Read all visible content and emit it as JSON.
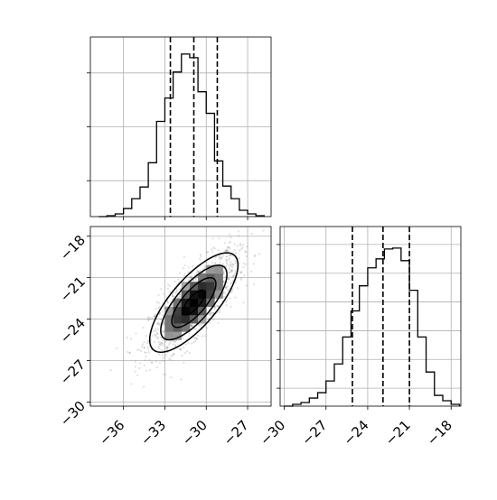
{
  "chart_data": [
    {
      "panel": "histogram-x",
      "type": "histogram",
      "xlim": [
        -38.4,
        -25.3
      ],
      "ylim": [
        0,
        1.0
      ],
      "bin_edges": [
        -37.8,
        -37.2,
        -36.6,
        -36.0,
        -35.4,
        -34.8,
        -34.2,
        -33.6,
        -33.0,
        -32.4,
        -31.8,
        -31.2,
        -30.6,
        -30.0,
        -29.4,
        -28.8,
        -28.2,
        -27.6,
        -27.0,
        -26.4,
        -25.8
      ],
      "counts": [
        0.0,
        0.005,
        0.015,
        0.045,
        0.1,
        0.165,
        0.3,
        0.53,
        0.66,
        0.805,
        0.905,
        0.885,
        0.695,
        0.575,
        0.31,
        0.17,
        0.1,
        0.035,
        0.015,
        0.005
      ],
      "quantiles": [
        -32.6,
        -30.9,
        -29.2
      ],
      "grid": true,
      "y_tick_values": [
        0.2,
        0.5,
        0.8
      ]
    },
    {
      "panel": "joint-2d",
      "type": "heatmap",
      "xlim": [
        -38.4,
        -25.3
      ],
      "ylim": [
        -30.3,
        -17.3
      ],
      "x_ticks": [
        -36,
        -33,
        -30,
        -27
      ],
      "x_tick_labels": [
        "−36",
        "−33",
        "−30",
        "−27"
      ],
      "y_ticks": [
        -18,
        -21,
        -24,
        -27,
        -30
      ],
      "y_tick_labels": [
        "−18",
        "−21",
        "−24",
        "−27",
        "−30"
      ],
      "mean": [
        -30.9,
        -22.8
      ],
      "std": [
        1.6,
        1.8
      ],
      "correlation": 0.75,
      "contour_levels_sigma": [
        0.5,
        1.0,
        1.5,
        2.0
      ],
      "grid": true
    },
    {
      "panel": "histogram-y",
      "type": "histogram",
      "xlim": [
        -30.3,
        -17.3
      ],
      "ylim": [
        0,
        1.0
      ],
      "x_ticks": [
        -30,
        -27,
        -24,
        -21,
        -18
      ],
      "x_tick_labels": [
        "−30",
        "−27",
        "−24",
        "−21",
        "−18"
      ],
      "bin_edges": [
        -30.0,
        -29.4,
        -28.8,
        -28.2,
        -27.6,
        -27.0,
        -26.4,
        -25.8,
        -25.2,
        -24.6,
        -24.0,
        -23.4,
        -22.8,
        -22.2,
        -21.6,
        -21.0,
        -20.4,
        -19.8,
        -19.2,
        -18.6,
        -18.0,
        -17.4
      ],
      "counts": [
        0.0,
        0.01,
        0.02,
        0.045,
        0.075,
        0.14,
        0.235,
        0.385,
        0.53,
        0.67,
        0.77,
        0.82,
        0.875,
        0.88,
        0.81,
        0.645,
        0.385,
        0.19,
        0.06,
        0.03,
        0.01
      ],
      "quantiles": [
        -25.1,
        -22.9,
        -21.0
      ],
      "grid": true,
      "y_tick_values": [
        0.1,
        0.26,
        0.42,
        0.58,
        0.74,
        0.9
      ]
    }
  ],
  "colors": {
    "line": "#000000",
    "grid": "#b0b0b0",
    "scatter": "#555555"
  }
}
